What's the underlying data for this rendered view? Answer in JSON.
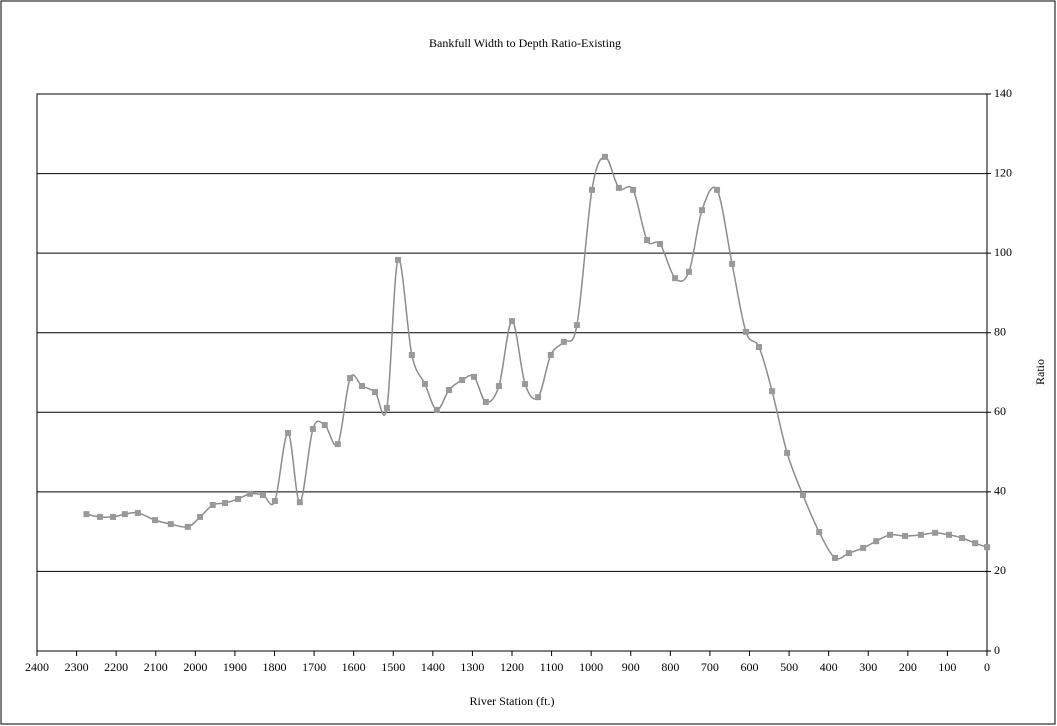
{
  "chart_data": {
    "type": "line",
    "title": "Bankfull Width to Depth Ratio-Existing",
    "x_label": "River Station (ft.)",
    "y_label": "Ratio",
    "x": [
      2275,
      2241,
      2208,
      2178,
      2145,
      2102,
      2062,
      2019,
      1988,
      1956,
      1925,
      1892,
      1862,
      1829,
      1799,
      1766,
      1736,
      1703,
      1673,
      1640,
      1609,
      1579,
      1546,
      1516,
      1488,
      1453,
      1420,
      1390,
      1359,
      1326,
      1296,
      1266,
      1233,
      1200,
      1167,
      1134,
      1102,
      1069,
      1036,
      998,
      965,
      930,
      894,
      859,
      826,
      788,
      753,
      720,
      682,
      644,
      609,
      576,
      543,
      505,
      465,
      424,
      384,
      349,
      313,
      280,
      245,
      207,
      167,
      131,
      96,
      63,
      30,
      0
    ],
    "series": [
      {
        "name": "Ratio",
        "color": "#8c8c8c",
        "marker_color": "#999999",
        "values": [
          34.4,
          33.7,
          33.7,
          34.4,
          34.7,
          32.9,
          31.9,
          31.2,
          33.7,
          36.7,
          37.2,
          38.2,
          39.5,
          39.2,
          37.7,
          54.8,
          37.4,
          55.8,
          56.8,
          52.0,
          68.6,
          66.6,
          65.1,
          61.1,
          98.3,
          74.4,
          67.1,
          60.6,
          65.6,
          68.1,
          68.9,
          62.6,
          66.6,
          82.9,
          67.1,
          63.8,
          74.4,
          77.7,
          81.9,
          115.9,
          124.2,
          116.4,
          115.9,
          103.3,
          102.3,
          93.7,
          95.3,
          110.8,
          115.9,
          97.3,
          80.2,
          76.4,
          65.3,
          49.8,
          39.2,
          29.9,
          23.4,
          24.6,
          25.9,
          27.6,
          29.2,
          28.9,
          29.2,
          29.7,
          29.2,
          28.4,
          27.1,
          26.1
        ]
      }
    ],
    "xlim": [
      2400,
      0
    ],
    "xticks": [
      2400,
      2300,
      2200,
      2100,
      2000,
      1900,
      1800,
      1700,
      1600,
      1500,
      1400,
      1300,
      1200,
      1100,
      1000,
      900,
      800,
      700,
      600,
      500,
      400,
      300,
      200,
      100,
      0
    ],
    "ylim": [
      0,
      140
    ],
    "yticks": [
      0,
      20,
      40,
      60,
      80,
      100,
      120,
      140
    ],
    "grid": true,
    "y_axis_side": "right"
  }
}
